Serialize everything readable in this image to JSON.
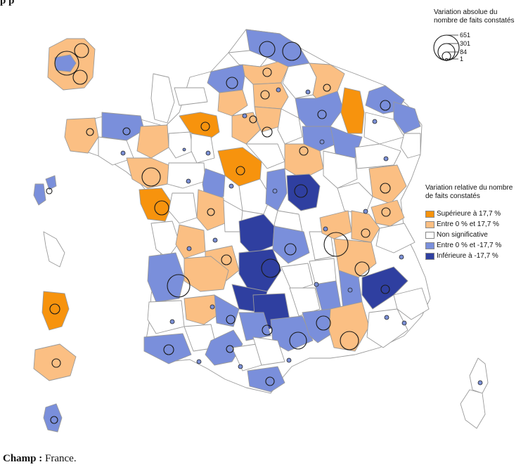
{
  "header": {
    "partial_title": "p    p"
  },
  "legend_absolute": {
    "title_line1": "Variation absolue du",
    "title_line2": "nombre de faits constatés",
    "values": [
      "651",
      "301",
      "84",
      "1"
    ]
  },
  "legend_relative": {
    "title_line1": "Variation relative du nombre",
    "title_line2": "de faits constatés",
    "classes": [
      {
        "label": "Supérieure à 17,7 %",
        "color": "#f7930d"
      },
      {
        "label": "Entre 0 % et 17,7 %",
        "color": "#fbbf83"
      },
      {
        "label": "Non significative",
        "color": "#ffffff"
      },
      {
        "label": "Entre 0 % et -17,7 %",
        "color": "#7a8fdb"
      },
      {
        "label": "Inférieure à -17,7 %",
        "color": "#2f3fa0"
      }
    ]
  },
  "footer": {
    "champ_label": "Champ :",
    "champ_value": " France."
  },
  "colors": {
    "border": "#9a9a9a",
    "sup": "#f7930d",
    "pos": "#fbbf83",
    "ns": "#ffffff",
    "neg": "#7a8fdb",
    "inf": "#2f3fa0"
  }
}
